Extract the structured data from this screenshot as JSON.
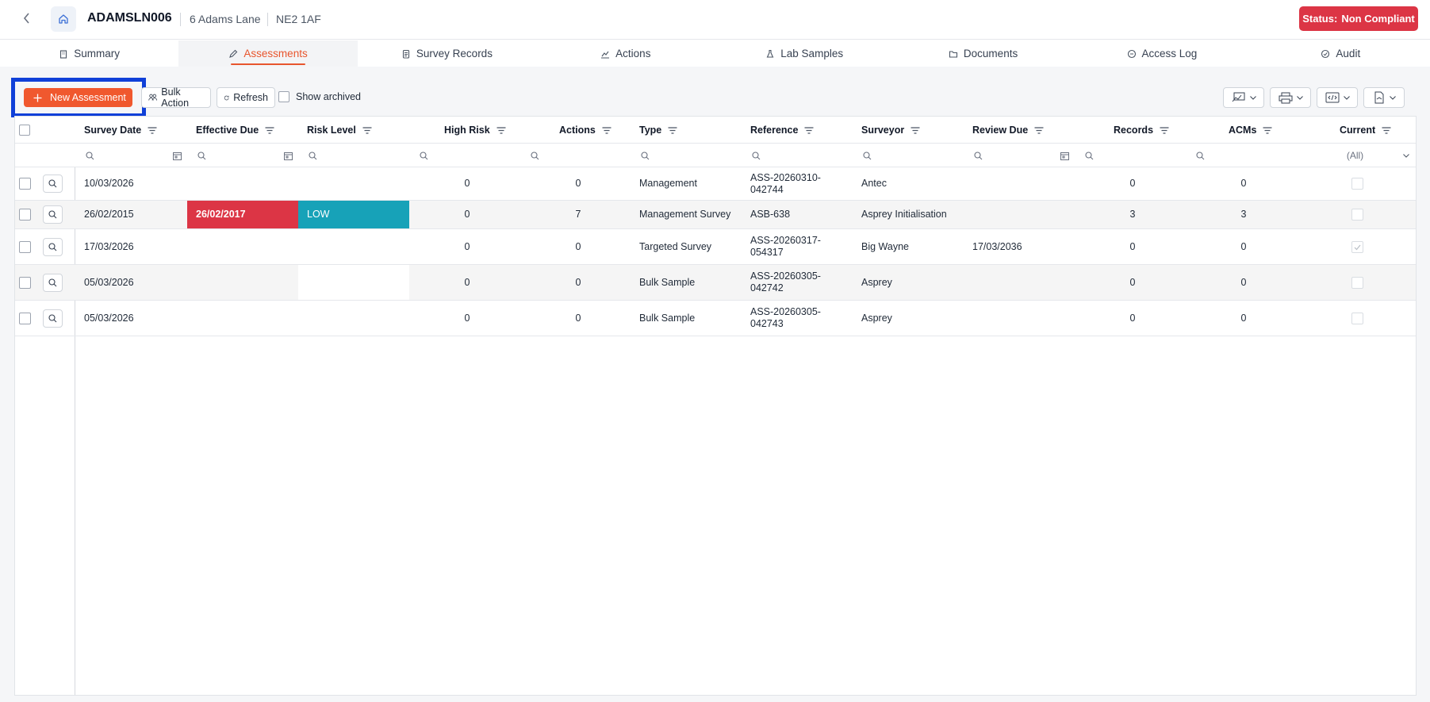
{
  "header": {
    "property_code": "ADAMSLN006",
    "address": "6 Adams Lane",
    "postcode": "NE2 1AF",
    "status_label": "Status:",
    "status_value": "Non Compliant",
    "status_color": "#dc3545"
  },
  "tabs": [
    {
      "label": "Summary",
      "icon": "building-icon"
    },
    {
      "label": "Assessments",
      "icon": "pen-icon",
      "active": true
    },
    {
      "label": "Survey Records",
      "icon": "clipboard-icon"
    },
    {
      "label": "Actions",
      "icon": "chart-icon"
    },
    {
      "label": "Lab Samples",
      "icon": "flask-icon"
    },
    {
      "label": "Documents",
      "icon": "folder-icon"
    },
    {
      "label": "Access Log",
      "icon": "log-icon"
    },
    {
      "label": "Audit",
      "icon": "audit-icon"
    }
  ],
  "toolbar": {
    "new_label": "New Assessment",
    "bulk_label": "Bulk Action",
    "refresh_label": "Refresh",
    "archived_label": "Show archived",
    "accent_color": "#f0582e"
  },
  "grid": {
    "columns": [
      "Survey Date",
      "Effective Due",
      "Risk Level",
      "High Risk",
      "Actions",
      "Type",
      "Reference",
      "Surveyor",
      "Review Due",
      "Records",
      "ACMs",
      "Current"
    ],
    "current_filter": "(All)",
    "rows": [
      {
        "survey_date": "10/03/2026",
        "effective_due": "",
        "risk_level": "",
        "high_risk": "0",
        "actions": "0",
        "type": "Management",
        "ref1": "ASS-20260310-",
        "ref2": "042744",
        "surveyor": "Antec",
        "review_due": "",
        "records": "0",
        "acms": "0",
        "current": false
      },
      {
        "survey_date": "26/02/2015",
        "effective_due": "26/02/2017",
        "risk_level": "LOW",
        "high_risk": "0",
        "actions": "7",
        "type": "Management Survey",
        "ref1": "ASB-638",
        "ref2": "",
        "surveyor": "Asprey Initialisation",
        "review_due": "",
        "records": "3",
        "acms": "3",
        "current": false
      },
      {
        "survey_date": "17/03/2026",
        "effective_due": "",
        "risk_level": "",
        "high_risk": "0",
        "actions": "0",
        "type": "Targeted Survey",
        "ref1": "ASS-20260317-",
        "ref2": "054317",
        "surveyor": "Big Wayne",
        "review_due": "17/03/2036",
        "records": "0",
        "acms": "0",
        "current": true
      },
      {
        "survey_date": "05/03/2026",
        "effective_due": "",
        "risk_level": "",
        "high_risk": "0",
        "actions": "0",
        "type": "Bulk Sample",
        "ref1": "ASS-20260305-",
        "ref2": "042742",
        "surveyor": "Asprey",
        "review_due": "",
        "records": "0",
        "acms": "0",
        "current": false
      },
      {
        "survey_date": "05/03/2026",
        "effective_due": "",
        "risk_level": "",
        "high_risk": "0",
        "actions": "0",
        "type": "Bulk Sample",
        "ref1": "ASS-20260305-",
        "ref2": "042743",
        "surveyor": "Asprey",
        "review_due": "",
        "records": "0",
        "acms": "0",
        "current": false
      }
    ]
  }
}
